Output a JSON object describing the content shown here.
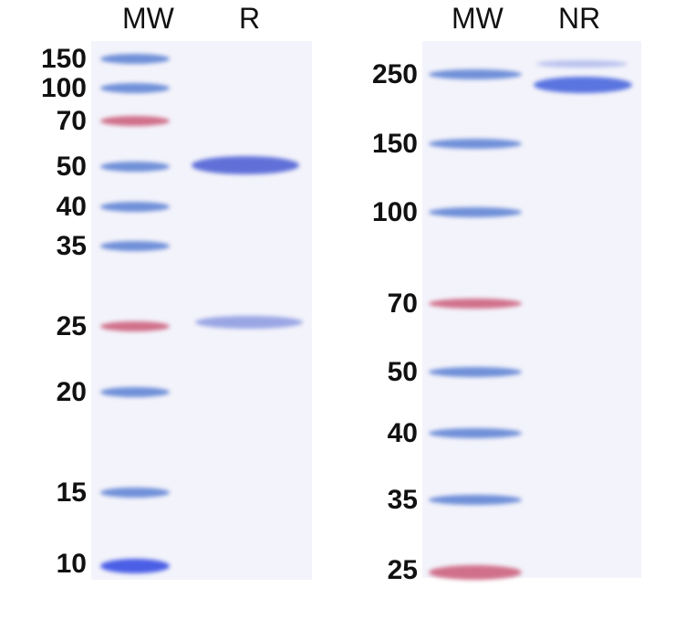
{
  "left_panel": {
    "lane_labels": [
      "MW",
      "R"
    ],
    "markers": [
      "150",
      "100",
      "70",
      "50",
      "40",
      "35",
      "25",
      "20",
      "15",
      "10"
    ]
  },
  "right_panel": {
    "lane_labels": [
      "MW",
      "NR"
    ],
    "markers": [
      "250",
      "150",
      "100",
      "70",
      "50",
      "40",
      "35",
      "25"
    ]
  },
  "colors": {
    "ladder_blue": "#6f8fd8",
    "ladder_red": "#d0708a",
    "sample_band": "#5f72d8",
    "gel_bg": "#f3f3fb"
  }
}
